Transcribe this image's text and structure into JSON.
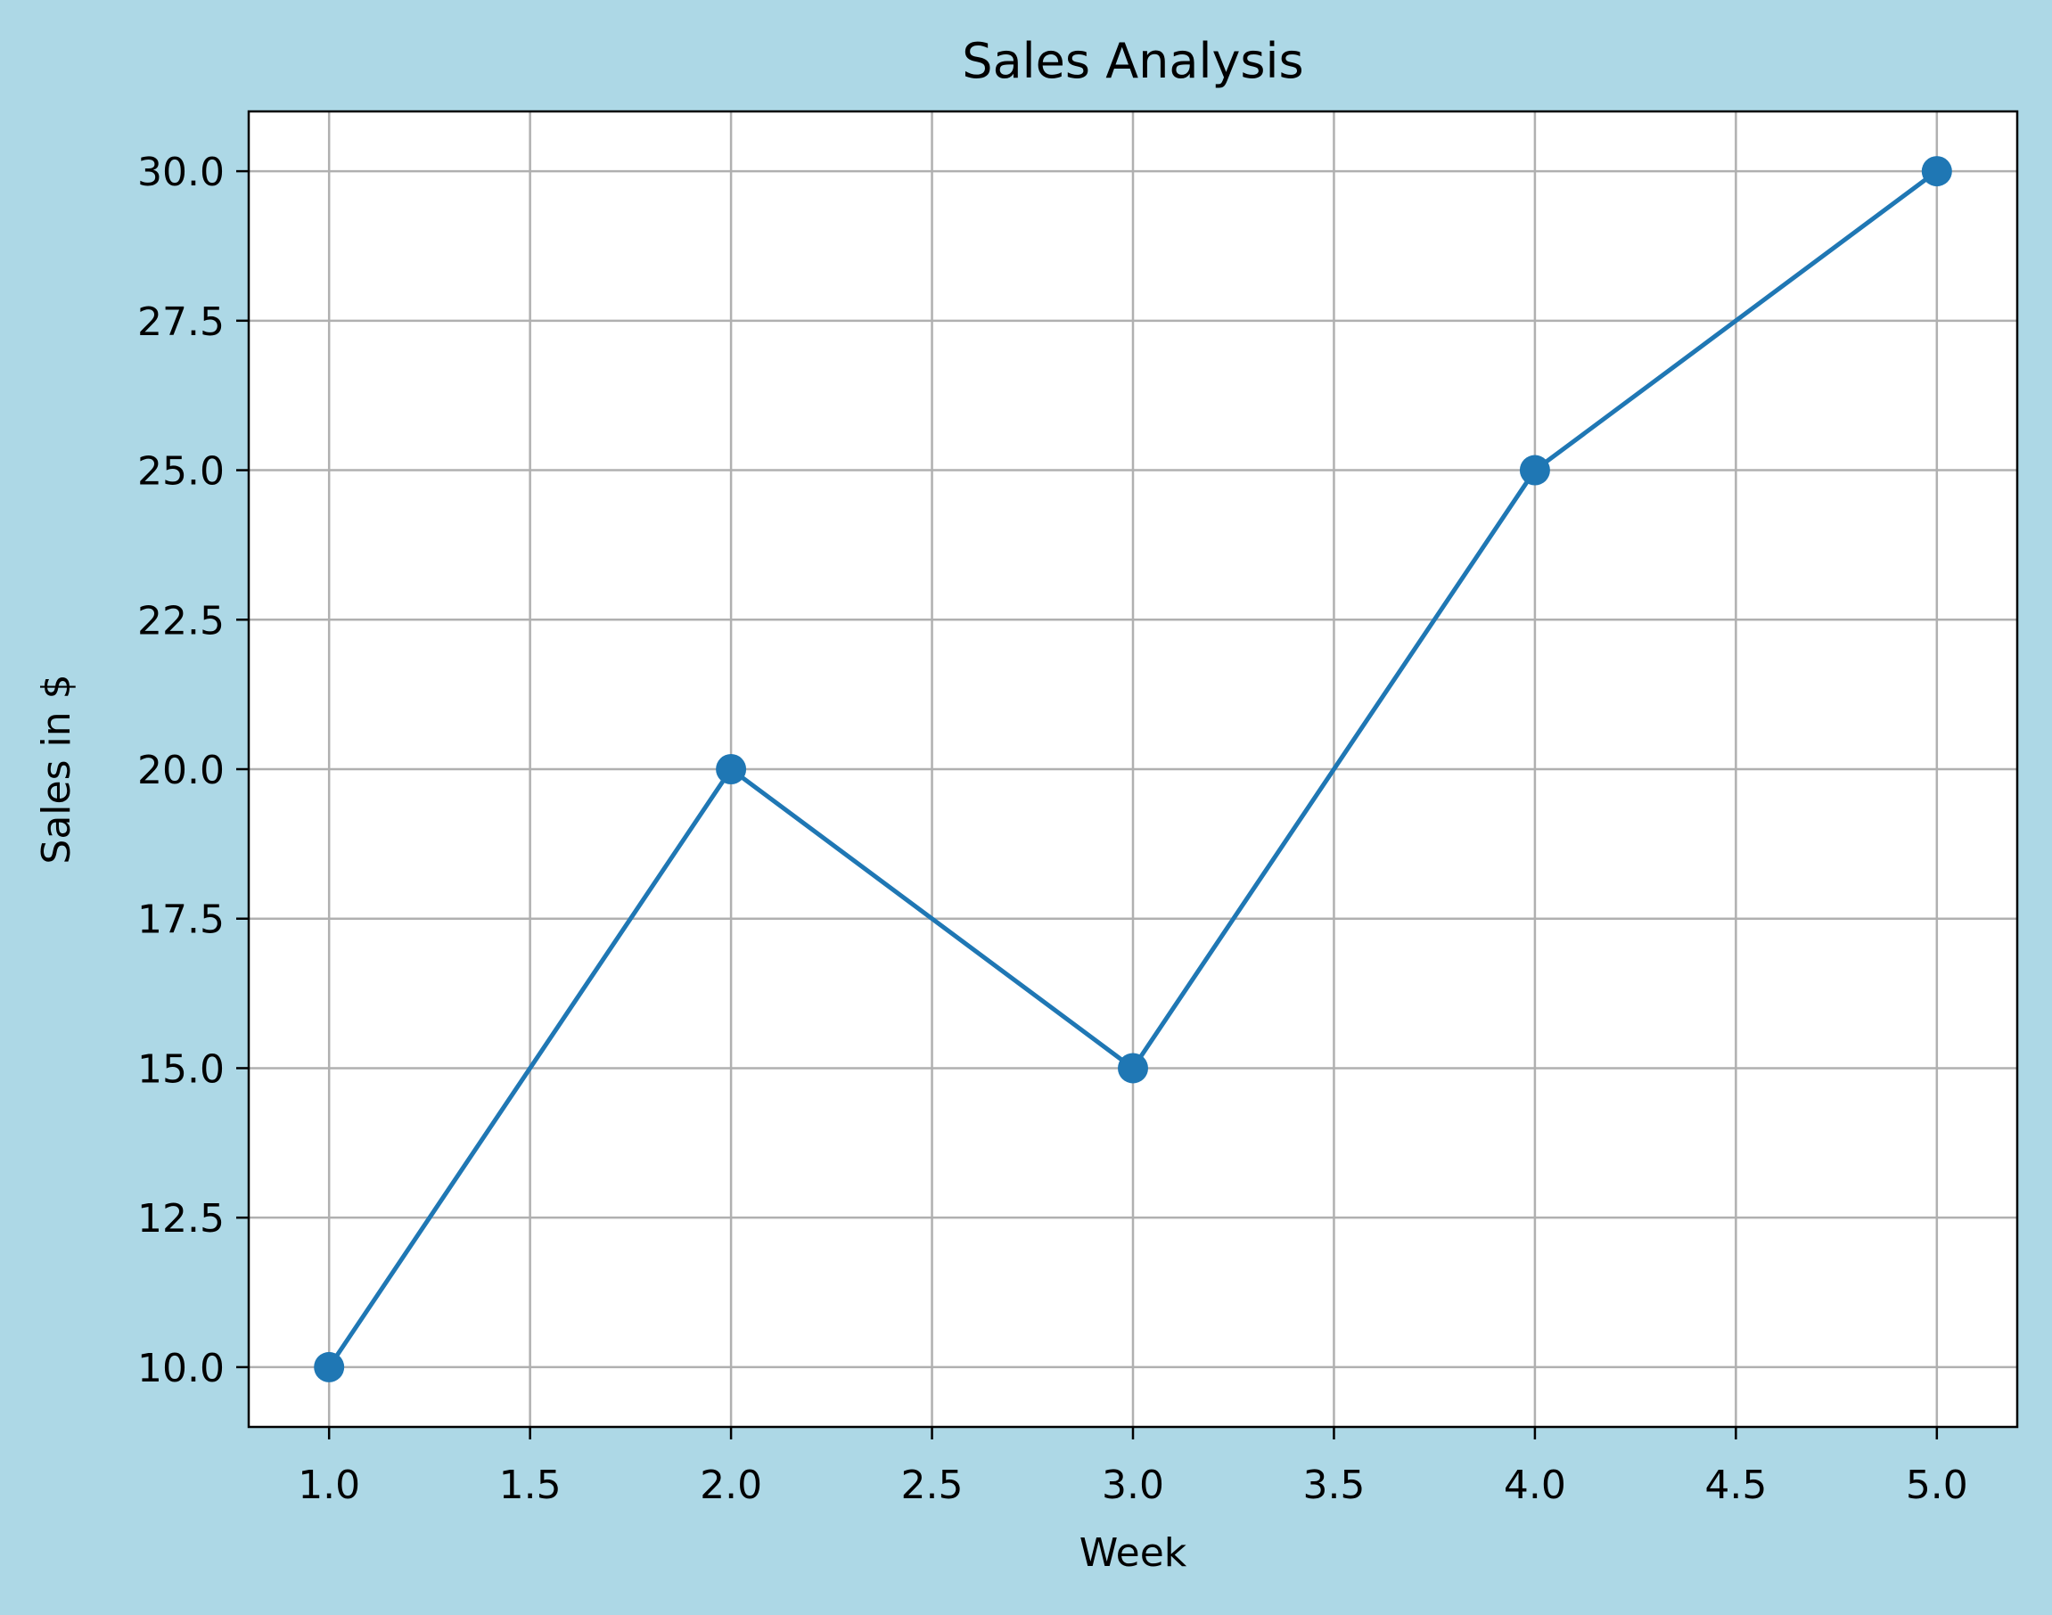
{
  "chart_data": {
    "type": "line",
    "title": "Sales Analysis",
    "xlabel": "Week",
    "ylabel": "Sales in $",
    "x": [
      1,
      2,
      3,
      4,
      5
    ],
    "series": [
      {
        "values": [
          10,
          20,
          15,
          25,
          30
        ],
        "color": "#1f77b4",
        "marker": "circle"
      }
    ],
    "xlim": [
      0.8,
      5.2
    ],
    "ylim": [
      9,
      31
    ],
    "x_ticks": [
      "1.0",
      "1.5",
      "2.0",
      "2.5",
      "3.0",
      "3.5",
      "4.0",
      "4.5",
      "5.0"
    ],
    "y_ticks": [
      "10.0",
      "12.5",
      "15.0",
      "17.5",
      "20.0",
      "22.5",
      "25.0",
      "27.5",
      "30.0"
    ],
    "grid": true,
    "colors": {
      "figure_background": "#add8e6",
      "plot_background": "#ffffff",
      "grid": "#b0b0b0",
      "axes": "#000000",
      "line": "#1f77b4"
    }
  }
}
